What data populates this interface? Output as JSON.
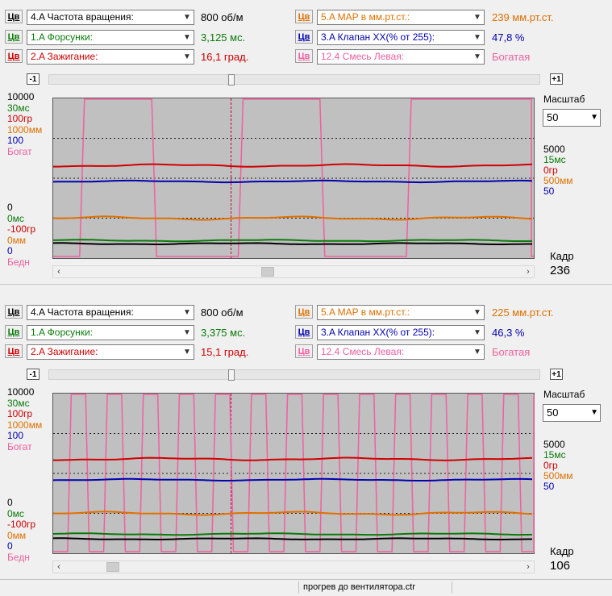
{
  "colors": {
    "black": "#000000",
    "green": "#0a7a0a",
    "red": "#d00000",
    "orange": "#e07000",
    "blue": "#0000b0",
    "pink": "#f060a0",
    "grid": "#202020",
    "cursor": "#c00040"
  },
  "panels": [
    {
      "channels_left": [
        {
          "btn": "Цв",
          "select": "4.A  Частота вращения:",
          "value": "800 об/м",
          "color": "#000000"
        },
        {
          "btn": "Цв",
          "select": "1.A  Форсунки:",
          "value": "3,125 мс.",
          "color": "#0a7a0a"
        },
        {
          "btn": "Цв",
          "select": "2.A  Зажигание:",
          "value": "16,1 град.",
          "color": "#d00000"
        }
      ],
      "channels_right": [
        {
          "btn": "Цв",
          "select": "5.A  MAP в мм.рт.ст.:",
          "value": "239 мм.рт.ст.",
          "color": "#e07000"
        },
        {
          "btn": "Цв",
          "select": "3.A  Клапан ХХ(% от 255):",
          "value": "47,8 %",
          "color": "#0000b0"
        },
        {
          "btn": "Цв",
          "select": "12.4  Смесь Левая:",
          "value": "Богатая",
          "color": "#f060a0"
        }
      ],
      "step_minus": "-1",
      "step_plus": "+1",
      "slider_fraction": 0.37,
      "axis_top": [
        "10000",
        "30мс",
        "100гр",
        "1000мм",
        "100",
        "Богат"
      ],
      "axis_bottom": [
        "0",
        "0мс",
        "-100гр",
        "0мм",
        "0",
        "Бедн"
      ],
      "axis_right": [
        "5000",
        "15мс",
        "0гр",
        "500мм",
        "50"
      ],
      "scale_label": "Масштаб",
      "scale_value": "50",
      "kadr_label": "Кадр",
      "kadr_value": "236",
      "hscroll_fraction": 0.44,
      "chart_data": {
        "type": "line",
        "series_levels": {
          "rpm": 0.09,
          "injector": 0.11,
          "ignition": 0.58,
          "map": 0.25,
          "iac": 0.48
        },
        "mixture_transitions": [
          0.0,
          0.055,
          0.065,
          0.205,
          0.215,
          0.385,
          0.395,
          0.555,
          0.565,
          0.735,
          0.745,
          0.995
        ],
        "mixture_start_rich": false,
        "cursor_x": 0.37
      }
    },
    {
      "channels_left": [
        {
          "btn": "Цв",
          "select": "4.A  Частота вращения:",
          "value": "800 об/м",
          "color": "#000000"
        },
        {
          "btn": "Цв",
          "select": "1.A  Форсунки:",
          "value": "3,375 мс.",
          "color": "#0a7a0a"
        },
        {
          "btn": "Цв",
          "select": "2.A  Зажигание:",
          "value": "15,1 град.",
          "color": "#d00000"
        }
      ],
      "channels_right": [
        {
          "btn": "Цв",
          "select": "5.A  MAP в мм.рт.ст.:",
          "value": "225 мм.рт.ст.",
          "color": "#e07000"
        },
        {
          "btn": "Цв",
          "select": "3.A  Клапан ХХ(% от 255):",
          "value": "46,3 %",
          "color": "#0000b0"
        },
        {
          "btn": "Цв",
          "select": "12.4  Смесь Левая:",
          "value": "Богатая",
          "color": "#f060a0"
        }
      ],
      "step_minus": "-1",
      "step_plus": "+1",
      "slider_fraction": 0.37,
      "axis_top": [
        "10000",
        "30мс",
        "100гр",
        "1000мм",
        "100",
        "Богат"
      ],
      "axis_bottom": [
        "0",
        "0мс",
        "-100гр",
        "0мм",
        "0",
        "Бедн"
      ],
      "axis_right": [
        "5000",
        "15мс",
        "0гр",
        "500мм",
        "50"
      ],
      "scale_label": "Масштаб",
      "scale_value": "50",
      "kadr_label": "Кадр",
      "kadr_value": "106",
      "hscroll_fraction": 0.09,
      "chart_data": {
        "type": "line",
        "series_levels": {
          "rpm": 0.09,
          "injector": 0.12,
          "ignition": 0.59,
          "map": 0.25,
          "iac": 0.46
        },
        "mixture_period": 0.075,
        "mixture_start_rich": false,
        "cursor_x": 0.37
      }
    }
  ],
  "status": {
    "filename": "прогрев до вентилятора.ctr"
  }
}
